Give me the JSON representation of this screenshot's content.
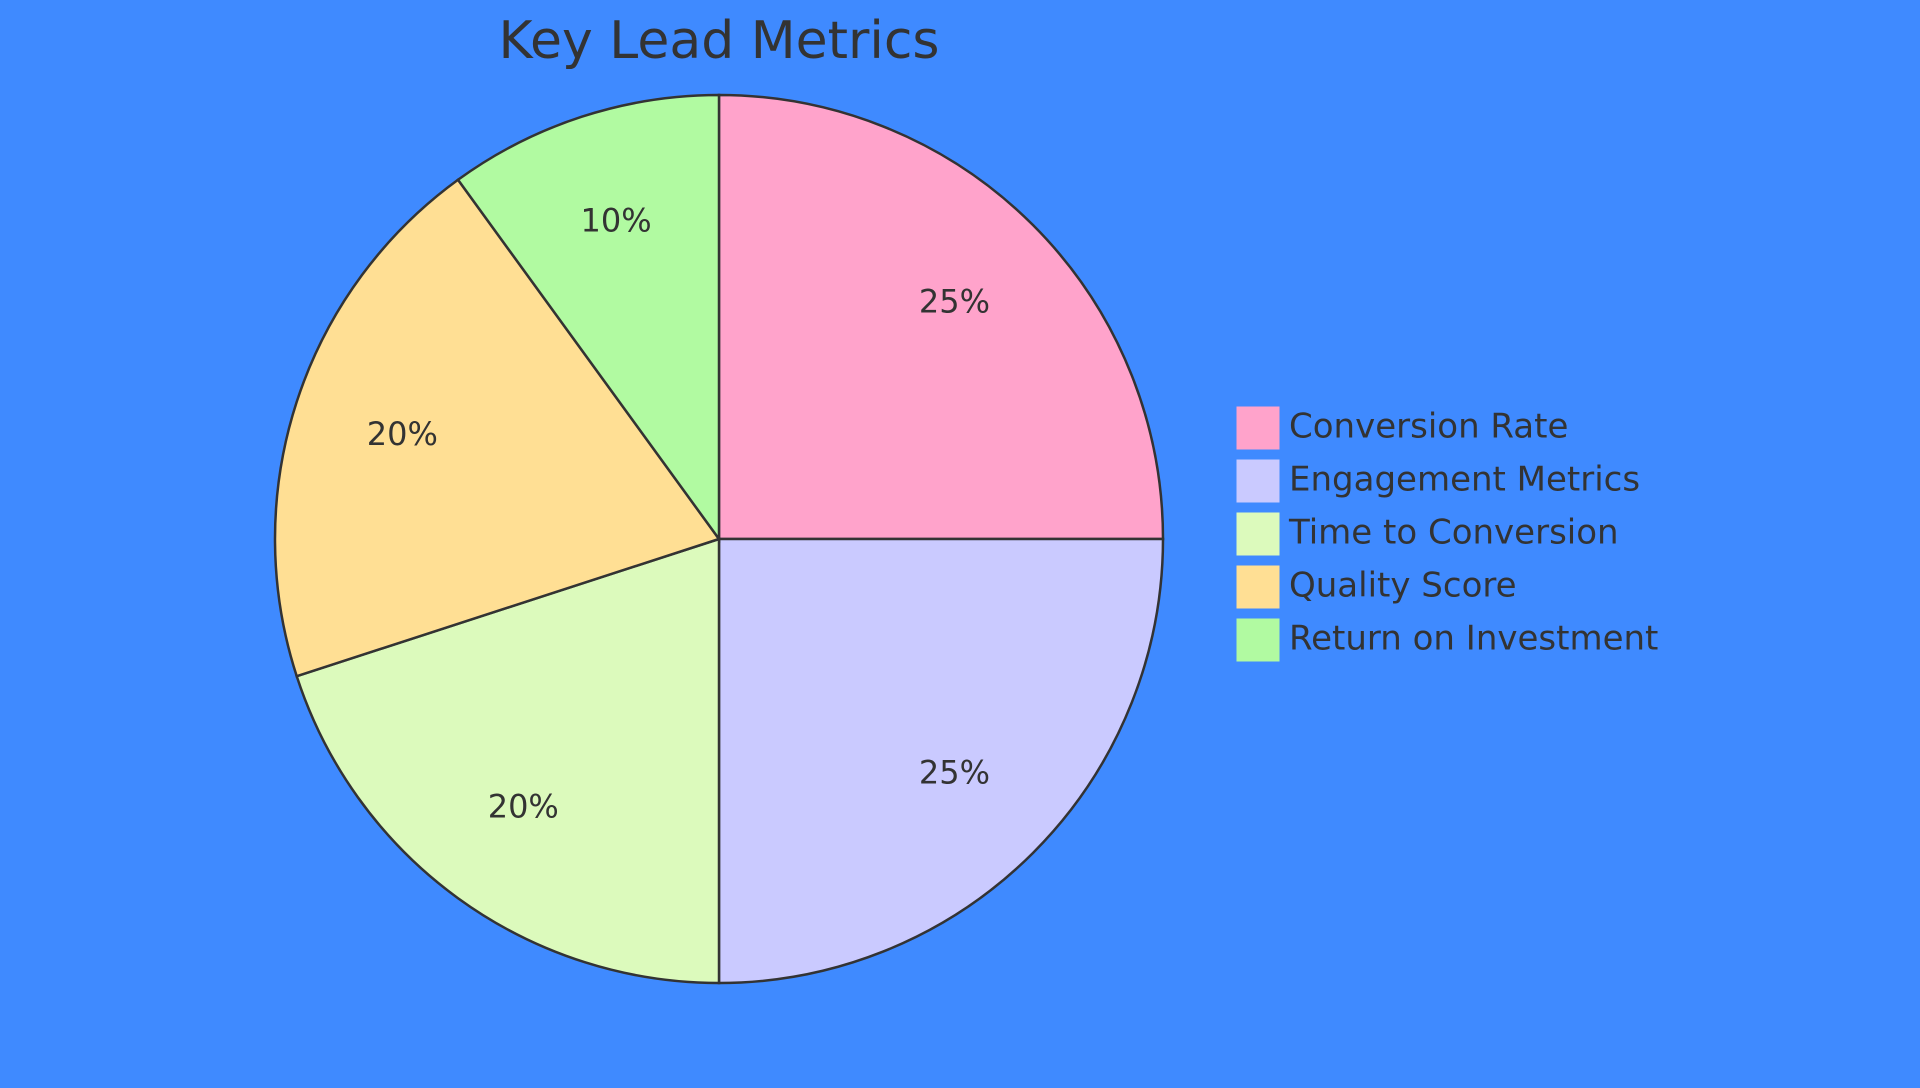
{
  "chart_data": {
    "type": "pie",
    "title": "Key Lead Metrics",
    "unit": "%",
    "slices": [
      {
        "name": "Conversion Rate",
        "value": 25,
        "label": "25%",
        "color": "#ffa3cb"
      },
      {
        "name": "Engagement Metrics",
        "value": 25,
        "label": "25%",
        "color": "#cacaff"
      },
      {
        "name": "Time to Conversion",
        "value": 20,
        "label": "20%",
        "color": "#dcfabc"
      },
      {
        "name": "Quality Score",
        "value": 20,
        "label": "20%",
        "color": "#ffdf94"
      },
      {
        "name": "Return on Investment",
        "value": 10,
        "label": "10%",
        "color": "#b1faa1"
      }
    ],
    "legend_position": "right",
    "start_angle": "top",
    "direction": "clockwise"
  },
  "colors": {
    "background": "#3f8aff",
    "stroke": "#333333",
    "text": "#333333"
  }
}
